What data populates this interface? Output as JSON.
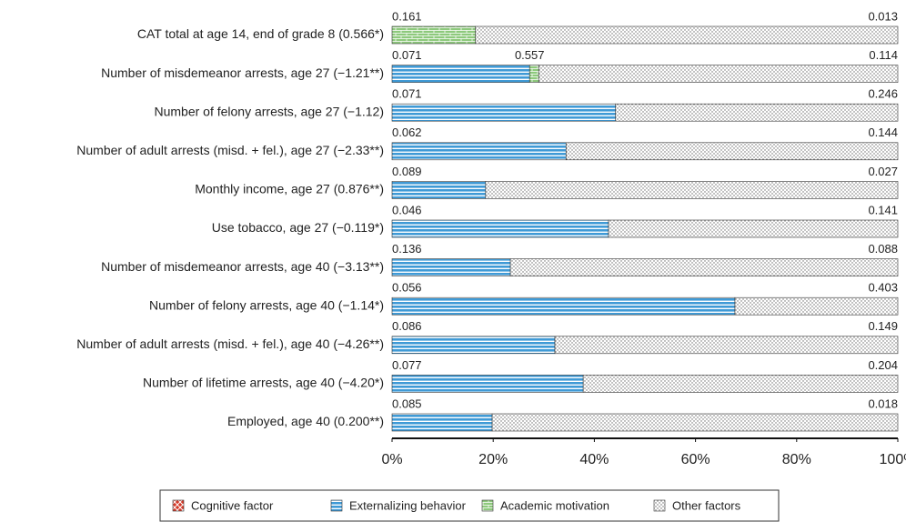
{
  "chart_data": {
    "type": "stacked-bar-horizontal",
    "categories": [
      "CAT total at age 14, end of grade 8 (0.566*)",
      "Number of misdemeanor arrests, age 27 (−1.21**)",
      "Number of felony arrests, age 27 (−1.12)",
      "Number of adult arrests (misd. + fel.), age 27 (−2.33**)",
      "Monthly income, age 27 (0.876**)",
      "Use tobacco, age 27 (−0.119*)",
      "Number of misdemeanor arrests, age 40 (−3.13**)",
      "Number of felony arrests, age 40 (−1.14*)",
      "Number of adult arrests (misd. + fel.), age 40 (−4.26**)",
      "Number of lifetime arrests, age 40 (−4.20*)",
      "Employed, age 40 (0.200**)"
    ],
    "series": [
      {
        "name": "Cognitive factor",
        "color": "#d43a2a",
        "values": [
          0,
          0,
          0,
          0,
          0,
          0,
          0,
          0,
          0,
          0,
          0
        ]
      },
      {
        "name": "Externalizing behavior",
        "color": "#3f9ad6",
        "values": [
          0,
          27.2,
          44.2,
          34.4,
          18.5,
          42.8,
          23.4,
          67.8,
          32.2,
          37.8,
          19.8
        ]
      },
      {
        "name": "Academic motivation",
        "color": "#7cc06a",
        "values": [
          16.5,
          1.8,
          0,
          0,
          0,
          0,
          0,
          0,
          0,
          0,
          0
        ]
      },
      {
        "name": "Other factors",
        "color": "#888888",
        "values": [
          83.5,
          71.0,
          55.8,
          65.6,
          81.5,
          57.2,
          76.6,
          32.2,
          67.8,
          62.2,
          80.2
        ]
      }
    ],
    "bar_annotations": [
      [
        "0.161",
        "0.013"
      ],
      [
        "0.071",
        "0.557",
        "0.114"
      ],
      [
        "0.071",
        "0.246"
      ],
      [
        "0.062",
        "0.144"
      ],
      [
        "0.089",
        "0.027"
      ],
      [
        "0.046",
        "0.141"
      ],
      [
        "0.136",
        "0.088"
      ],
      [
        "0.056",
        "0.403"
      ],
      [
        "0.086",
        "0.149"
      ],
      [
        "0.077",
        "0.204"
      ],
      [
        "0.085",
        "0.018"
      ]
    ],
    "xlim": [
      0,
      100
    ],
    "xticks": [
      {
        "value": 0,
        "label": "0%"
      },
      {
        "value": 20,
        "label": "20%"
      },
      {
        "value": 40,
        "label": "40%"
      },
      {
        "value": 60,
        "label": "60%"
      },
      {
        "value": 80,
        "label": "80%"
      },
      {
        "value": 100,
        "label": "100%"
      }
    ],
    "legend": "bottom"
  }
}
